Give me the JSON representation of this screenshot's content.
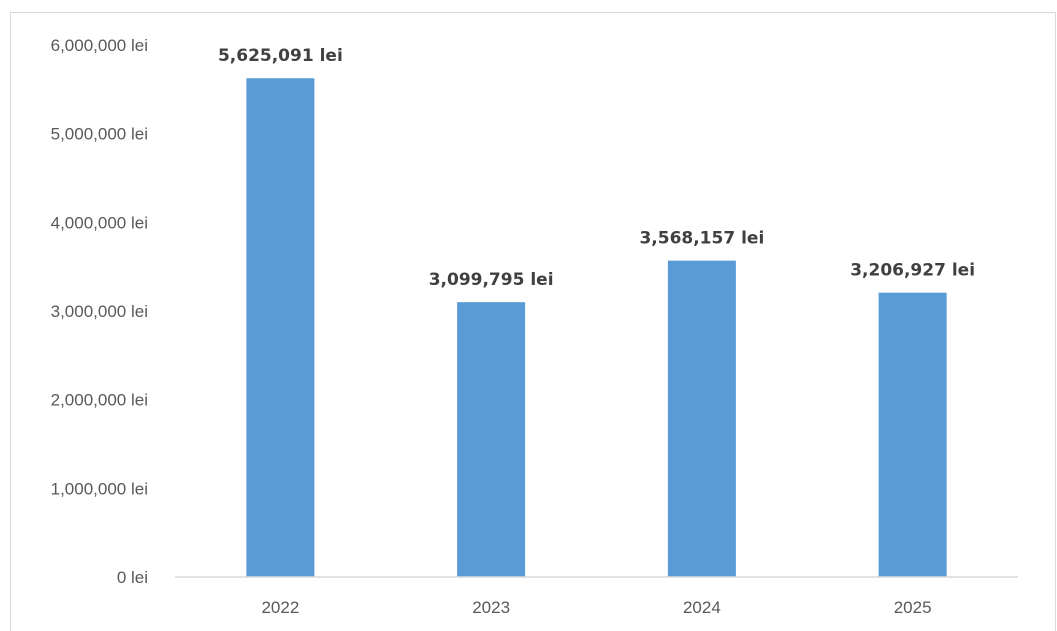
{
  "chart_data": {
    "type": "bar",
    "title": "",
    "xlabel": "",
    "ylabel": "",
    "categories": [
      "2022",
      "2023",
      "2024",
      "2025"
    ],
    "values": [
      5625091,
      3099795,
      3568157,
      3206927
    ],
    "data_labels": [
      "5,625,091 lei",
      "3,099,795 lei",
      "3,568,157 lei",
      "3,206,927 lei"
    ],
    "ylim": [
      0,
      6000000
    ],
    "y_ticks": [
      0,
      1000000,
      2000000,
      3000000,
      4000000,
      5000000,
      6000000
    ],
    "y_tick_labels": [
      "0 lei",
      "1,000,000 lei",
      "2,000,000 lei",
      "3,000,000 lei",
      "4,000,000 lei",
      "5,000,000 lei",
      "6,000,000 lei"
    ],
    "grid": false,
    "legend": "none",
    "bar_color": "#5b9bd5",
    "axis_color": "#d9d9d9",
    "text_color": "#595959"
  }
}
